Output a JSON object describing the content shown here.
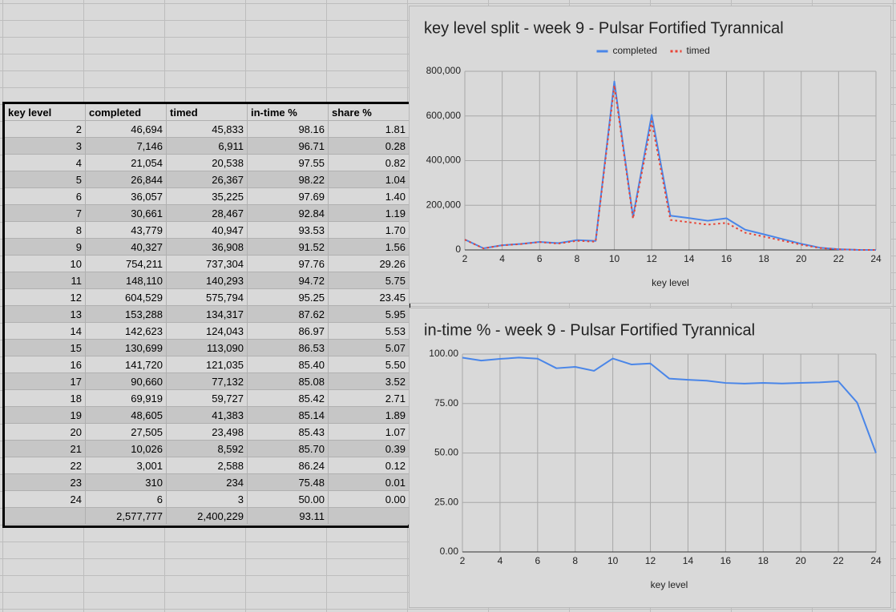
{
  "table": {
    "header": [
      "key level",
      "completed",
      "timed",
      "in-time %",
      "share %"
    ],
    "rows": [
      [
        "2",
        "46,694",
        "45,833",
        "98.16",
        "1.81"
      ],
      [
        "3",
        "7,146",
        "6,911",
        "96.71",
        "0.28"
      ],
      [
        "4",
        "21,054",
        "20,538",
        "97.55",
        "0.82"
      ],
      [
        "5",
        "26,844",
        "26,367",
        "98.22",
        "1.04"
      ],
      [
        "6",
        "36,057",
        "35,225",
        "97.69",
        "1.40"
      ],
      [
        "7",
        "30,661",
        "28,467",
        "92.84",
        "1.19"
      ],
      [
        "8",
        "43,779",
        "40,947",
        "93.53",
        "1.70"
      ],
      [
        "9",
        "40,327",
        "36,908",
        "91.52",
        "1.56"
      ],
      [
        "10",
        "754,211",
        "737,304",
        "97.76",
        "29.26"
      ],
      [
        "11",
        "148,110",
        "140,293",
        "94.72",
        "5.75"
      ],
      [
        "12",
        "604,529",
        "575,794",
        "95.25",
        "23.45"
      ],
      [
        "13",
        "153,288",
        "134,317",
        "87.62",
        "5.95"
      ],
      [
        "14",
        "142,623",
        "124,043",
        "86.97",
        "5.53"
      ],
      [
        "15",
        "130,699",
        "113,090",
        "86.53",
        "5.07"
      ],
      [
        "16",
        "141,720",
        "121,035",
        "85.40",
        "5.50"
      ],
      [
        "17",
        "90,660",
        "77,132",
        "85.08",
        "3.52"
      ],
      [
        "18",
        "69,919",
        "59,727",
        "85.42",
        "2.71"
      ],
      [
        "19",
        "48,605",
        "41,383",
        "85.14",
        "1.89"
      ],
      [
        "20",
        "27,505",
        "23,498",
        "85.43",
        "1.07"
      ],
      [
        "21",
        "10,026",
        "8,592",
        "85.70",
        "0.39"
      ],
      [
        "22",
        "3,001",
        "2,588",
        "86.24",
        "0.12"
      ],
      [
        "23",
        "310",
        "234",
        "75.48",
        "0.01"
      ],
      [
        "24",
        "6",
        "3",
        "50.00",
        "0.00"
      ]
    ],
    "total": [
      "2,577,777",
      "2,400,229",
      "93.11"
    ]
  },
  "chart_data": [
    {
      "type": "line",
      "title": "key level split - week 9 - Pulsar Fortified Tyrannical",
      "xlabel": "key level",
      "x": [
        2,
        3,
        4,
        5,
        6,
        7,
        8,
        9,
        10,
        11,
        12,
        13,
        14,
        15,
        16,
        17,
        18,
        19,
        20,
        21,
        22,
        23,
        24
      ],
      "series": [
        {
          "name": "completed",
          "color": "#4a86e8",
          "style": "solid",
          "values": [
            46694,
            7146,
            21054,
            26844,
            36057,
            30661,
            43779,
            40327,
            754211,
            148110,
            604529,
            153288,
            142623,
            130699,
            141720,
            90660,
            69919,
            48605,
            27505,
            10026,
            3001,
            310,
            6
          ]
        },
        {
          "name": "timed",
          "color": "#e84335",
          "style": "dotted",
          "values": [
            45833,
            6911,
            20538,
            26367,
            35225,
            28467,
            40947,
            36908,
            737304,
            140293,
            575794,
            134317,
            124043,
            113090,
            121035,
            77132,
            59727,
            41383,
            23498,
            8592,
            2588,
            234,
            3
          ]
        }
      ],
      "xlim": [
        2,
        24
      ],
      "xticks": [
        2,
        4,
        6,
        8,
        10,
        12,
        14,
        16,
        18,
        20,
        22,
        24
      ],
      "ylim": [
        0,
        800000
      ],
      "yticks": [
        {
          "value": 0,
          "label": "0"
        },
        {
          "value": 200000,
          "label": "200,000"
        },
        {
          "value": 400000,
          "label": "400,000"
        },
        {
          "value": 600000,
          "label": "600,000"
        },
        {
          "value": 800000,
          "label": "800,000"
        }
      ],
      "grid": true,
      "legend": "top"
    },
    {
      "type": "line",
      "title": "in-time % - week 9 - Pulsar Fortified Tyrannical",
      "xlabel": "key level",
      "x": [
        2,
        3,
        4,
        5,
        6,
        7,
        8,
        9,
        10,
        11,
        12,
        13,
        14,
        15,
        16,
        17,
        18,
        19,
        20,
        21,
        22,
        23,
        24
      ],
      "series": [
        {
          "color": "#4a86e8",
          "style": "solid",
          "values": [
            98.16,
            96.71,
            97.55,
            98.22,
            97.69,
            92.84,
            93.53,
            91.52,
            97.76,
            94.72,
            95.25,
            87.62,
            86.97,
            86.53,
            85.4,
            85.08,
            85.42,
            85.14,
            85.43,
            85.7,
            86.24,
            75.48,
            50
          ]
        }
      ],
      "xlim": [
        2,
        24
      ],
      "xticks": [
        2,
        4,
        6,
        8,
        10,
        12,
        14,
        16,
        18,
        20,
        22,
        24
      ],
      "ylim": [
        0,
        100
      ],
      "yticks": [
        {
          "value": 0,
          "label": "0.00"
        },
        {
          "value": 25,
          "label": "25.00"
        },
        {
          "value": 50,
          "label": "50.00"
        },
        {
          "value": 75,
          "label": "75.00"
        },
        {
          "value": 100,
          "label": "100.00"
        }
      ],
      "grid": true
    }
  ]
}
